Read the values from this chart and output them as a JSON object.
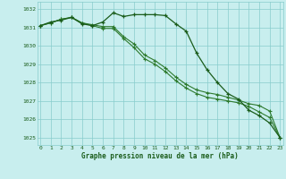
{
  "hours": [
    0,
    1,
    2,
    3,
    4,
    5,
    6,
    7,
    8,
    9,
    10,
    11,
    12,
    13,
    14,
    15,
    16,
    17,
    18,
    19,
    20,
    21,
    22,
    23
  ],
  "series1": [
    1031.1,
    1031.3,
    1031.4,
    1031.55,
    1031.2,
    1031.1,
    1031.3,
    1031.8,
    1031.6,
    1031.7,
    1031.7,
    1031.7,
    1031.65,
    1031.2,
    1030.8,
    1029.6,
    1028.7,
    1028.0,
    1027.4,
    1027.1,
    1026.5,
    1026.2,
    1025.8,
    1025.0
  ],
  "series2": [
    1031.1,
    1031.25,
    1031.45,
    1031.55,
    1031.25,
    1031.1,
    1030.95,
    1030.95,
    1030.4,
    1029.9,
    1029.3,
    1029.0,
    1028.6,
    1028.1,
    1027.7,
    1027.4,
    1027.2,
    1027.1,
    1027.0,
    1026.9,
    1026.7,
    1026.4,
    1026.1,
    1025.0
  ],
  "series3": [
    1031.1,
    1031.25,
    1031.45,
    1031.55,
    1031.25,
    1031.15,
    1031.05,
    1031.05,
    1030.5,
    1030.1,
    1029.5,
    1029.2,
    1028.8,
    1028.3,
    1027.9,
    1027.6,
    1027.45,
    1027.35,
    1027.2,
    1027.05,
    1026.85,
    1026.75,
    1026.45,
    1025.0
  ],
  "line_color1": "#1a5c1a",
  "line_color2": "#2d7a2d",
  "line_color3": "#2d7a2d",
  "bg_color": "#c8eeee",
  "grid_color": "#88cccc",
  "text_color": "#1a5c1a",
  "xlabel": "Graphe pression niveau de la mer (hPa)",
  "ylim": [
    1024.6,
    1032.4
  ],
  "yticks": [
    1025,
    1026,
    1027,
    1028,
    1029,
    1030,
    1031,
    1032
  ],
  "xticks": [
    0,
    1,
    2,
    3,
    4,
    5,
    6,
    7,
    8,
    9,
    10,
    11,
    12,
    13,
    14,
    15,
    16,
    17,
    18,
    19,
    20,
    21,
    22,
    23
  ]
}
